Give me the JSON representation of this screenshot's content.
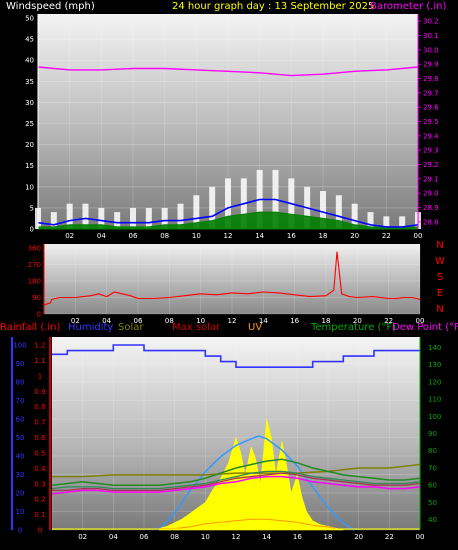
{
  "header": {
    "windspeed_label": "Windspeed (mph)",
    "title": "24 hour graph day : 13 September 2025",
    "barometer_label": "Barometer (.in)"
  },
  "direction_labels": [
    "N",
    "W",
    "S",
    "E",
    "N"
  ],
  "legend": {
    "rainfall": "Rainfall (.in)",
    "humidity": "Humidity",
    "solar": "Solar",
    "max_solar": "Max solar",
    "uv": "UV",
    "temperature": "Temperature (°F)",
    "dew_point": "Dew Point (°F)"
  },
  "colors": {
    "windspeed_label": "#ffffff",
    "title": "#ffff00",
    "barometer": "#ff00ff",
    "wind_avg": "#0000ff",
    "wind_gust": "#ffffff",
    "wind_green": "#008000",
    "direction": "#ff0000",
    "rainfall": "#ff0000",
    "humidity": "#3333ff",
    "solar": "#808000",
    "max_solar": "#cc0000",
    "uv": "#ff9900",
    "temperature": "#00aa00",
    "dew_point": "#ff00ff"
  },
  "chart_data": [
    {
      "type": "line",
      "name": "wind-barometer",
      "x_ticks": [
        "00",
        "02",
        "04",
        "06",
        "08",
        "10",
        "12",
        "14",
        "16",
        "18",
        "20",
        "22",
        "00"
      ],
      "y_left_ticks": [
        0,
        5,
        10,
        15,
        20,
        25,
        30,
        35,
        40,
        45,
        50
      ],
      "y_left_range": [
        0,
        50
      ],
      "y_right_ticks": [
        28.8,
        28.9,
        29.0,
        29.1,
        29.2,
        29.3,
        29.4,
        29.5,
        29.6,
        29.7,
        29.8,
        29.9,
        30.0,
        30.1,
        30.2
      ],
      "y_right_range": [
        28.75,
        30.25
      ],
      "barometer_x_hours": [
        0,
        2,
        4,
        6,
        8,
        10,
        12,
        14,
        16,
        18,
        20,
        22,
        24
      ],
      "barometer": [
        29.88,
        29.86,
        29.86,
        29.87,
        29.87,
        29.86,
        29.85,
        29.84,
        29.82,
        29.83,
        29.85,
        29.86,
        29.88
      ],
      "wind_x_hours": [
        0,
        1,
        2,
        3,
        4,
        5,
        6,
        7,
        8,
        9,
        10,
        11,
        12,
        13,
        14,
        15,
        16,
        17,
        18,
        19,
        20,
        21,
        22,
        23,
        24
      ],
      "wind_avg": [
        1.5,
        1,
        2,
        2.5,
        2,
        1.5,
        1.5,
        1.5,
        2,
        2,
        2.5,
        3,
        5,
        6,
        7,
        7,
        6,
        5,
        4,
        3,
        2,
        1,
        0.5,
        0.5,
        1
      ],
      "wind_gust": [
        5,
        4,
        6,
        6,
        5,
        4,
        5,
        5,
        5,
        6,
        8,
        10,
        12,
        12,
        14,
        14,
        12,
        10,
        9,
        8,
        6,
        4,
        3,
        3,
        4
      ],
      "wind_green": [
        0.5,
        0.5,
        1,
        1,
        1,
        0.5,
        0.5,
        0.5,
        1,
        1,
        1.5,
        2,
        3,
        3.5,
        4,
        4,
        3.5,
        3,
        2.5,
        2,
        1,
        0.5,
        0.3,
        0.3,
        0.5
      ]
    },
    {
      "type": "line",
      "name": "wind-direction",
      "x_ticks": [
        "00",
        "02",
        "04",
        "06",
        "08",
        "10",
        "12",
        "14",
        "16",
        "18",
        "20",
        "22",
        "00"
      ],
      "y_ticks": [
        0,
        90,
        180,
        270,
        360
      ],
      "y_range": [
        0,
        360
      ],
      "x_hours": [
        0,
        0.4,
        0.5,
        1,
        2,
        2.5,
        3,
        3.5,
        4,
        4.5,
        5,
        5.5,
        6,
        7,
        8,
        9,
        10,
        11,
        12,
        13,
        14,
        15,
        16,
        17,
        18,
        18.5,
        18.7,
        19,
        19.5,
        20,
        21,
        22,
        22.5,
        23,
        23.5,
        24
      ],
      "direction": [
        50,
        60,
        80,
        90,
        90,
        95,
        100,
        110,
        95,
        120,
        110,
        100,
        85,
        85,
        90,
        100,
        110,
        105,
        115,
        110,
        120,
        115,
        105,
        95,
        100,
        130,
        340,
        110,
        95,
        90,
        95,
        85,
        85,
        90,
        90,
        80
      ]
    },
    {
      "type": "line",
      "name": "rain-humidity-solar-temperature",
      "x_ticks": [
        "00",
        "02",
        "04",
        "06",
        "08",
        "10",
        "12",
        "14",
        "16",
        "18",
        "20",
        "22",
        "00"
      ],
      "rainfall_ticks": [
        0,
        0.1,
        0.2,
        0.3,
        0.4,
        0.5,
        0.6,
        0.7,
        0.8,
        0.9,
        1,
        1.1,
        1.2
      ],
      "rainfall_range": [
        0,
        1.2
      ],
      "humidity_ticks": [
        0,
        10,
        20,
        30,
        40,
        50,
        60,
        70,
        80,
        90,
        100
      ],
      "humidity_range": [
        0,
        100
      ],
      "temperature_ticks": [
        40,
        50,
        60,
        70,
        80,
        90,
        100,
        110,
        120,
        130,
        140
      ],
      "temperature_range": [
        34,
        146
      ],
      "humidity_x_hours": [
        0,
        1,
        1,
        2,
        2,
        3,
        3,
        4,
        4,
        5,
        5,
        6,
        6,
        7,
        7,
        8,
        8,
        9,
        9,
        10,
        10,
        11,
        11,
        12,
        12,
        13,
        13,
        14,
        14,
        15,
        15,
        16,
        16,
        17,
        17,
        18,
        18,
        19,
        19,
        20,
        20,
        21,
        21,
        22,
        22,
        23,
        23,
        24
      ],
      "humidity": [
        95,
        95,
        97,
        97,
        97,
        97,
        97,
        97,
        100,
        100,
        100,
        100,
        97,
        97,
        97,
        97,
        97,
        97,
        97,
        97,
        94,
        94,
        91,
        91,
        88,
        88,
        88,
        88,
        88,
        88,
        88,
        88,
        88,
        88,
        91,
        91,
        91,
        91,
        94,
        94,
        94,
        94,
        97,
        97,
        97,
        97,
        97,
        97
      ],
      "solar_x_hours": [
        7,
        7.5,
        8,
        8.5,
        9,
        9.5,
        10,
        10.5,
        11,
        11.5,
        12,
        12.3,
        12.6,
        13,
        13.3,
        13.6,
        14,
        14.3,
        14.6,
        15,
        15.3,
        15.6,
        16,
        16.3,
        16.6,
        17,
        17.5,
        18,
        18.5,
        19
      ],
      "solar_line": [
        65,
        65,
        66,
        66,
        66,
        66,
        67,
        67,
        67,
        68,
        70,
        70,
        72
      ],
      "temperature_x_hours": [
        0,
        1,
        2,
        3,
        4,
        5,
        6,
        7,
        8,
        9,
        10,
        11,
        12,
        13,
        14,
        15,
        16,
        17,
        18,
        19,
        20,
        21,
        22,
        23,
        24
      ],
      "temperature": [
        60,
        61,
        62,
        61,
        60,
        60,
        60,
        60,
        61,
        62,
        64,
        67,
        70,
        72,
        74,
        75,
        73,
        70,
        68,
        66,
        65,
        64,
        63,
        63,
        64
      ],
      "temperature_green2": [
        58,
        59,
        59,
        59,
        58,
        58,
        58,
        58,
        59,
        60,
        61,
        63,
        65,
        67,
        68,
        68,
        67,
        65,
        64,
        63,
        62,
        61,
        61,
        61,
        62
      ],
      "max_solar_line": [
        57,
        57,
        58,
        58,
        57,
        57,
        57,
        57,
        58,
        59,
        60,
        62,
        64,
        65,
        66,
        67,
        66,
        64,
        63,
        62,
        61,
        60,
        60,
        60,
        61
      ],
      "dew_point": [
        55,
        56,
        57,
        57,
        56,
        56,
        56,
        56,
        57,
        58,
        59,
        61,
        62,
        64,
        65,
        65,
        64,
        62,
        61,
        60,
        59,
        59,
        58,
        58,
        59
      ],
      "max_solar_curve_x": [
        6.9,
        8,
        9,
        10,
        11,
        12,
        13,
        13.5,
        14,
        15,
        16,
        17,
        18,
        19,
        19.7
      ],
      "max_solar_curve_pct": [
        0,
        0.18,
        0.42,
        0.62,
        0.78,
        0.9,
        0.97,
        1.0,
        0.97,
        0.85,
        0.68,
        0.46,
        0.24,
        0.07,
        0
      ],
      "uv_x_hours": [
        7.0,
        8,
        9,
        10,
        11,
        12,
        13,
        14,
        15,
        16,
        17,
        18,
        18.5
      ],
      "uv": [
        0.01,
        0.01,
        0.02,
        0.04,
        0.05,
        0.06,
        0.07,
        0.07,
        0.06,
        0.05,
        0.03,
        0.02,
        0.01
      ],
      "solar": [
        0.01,
        0.02,
        0.04,
        0.06,
        0.09,
        0.12,
        0.15,
        0.22,
        0.28,
        0.36,
        0.5,
        0.42,
        0.3,
        0.45,
        0.38,
        0.25,
        0.6,
        0.5,
        0.3,
        0.48,
        0.35,
        0.2,
        0.3,
        0.18,
        0.1,
        0.05,
        0.03,
        0.02,
        0.01,
        0.0
      ]
    }
  ]
}
